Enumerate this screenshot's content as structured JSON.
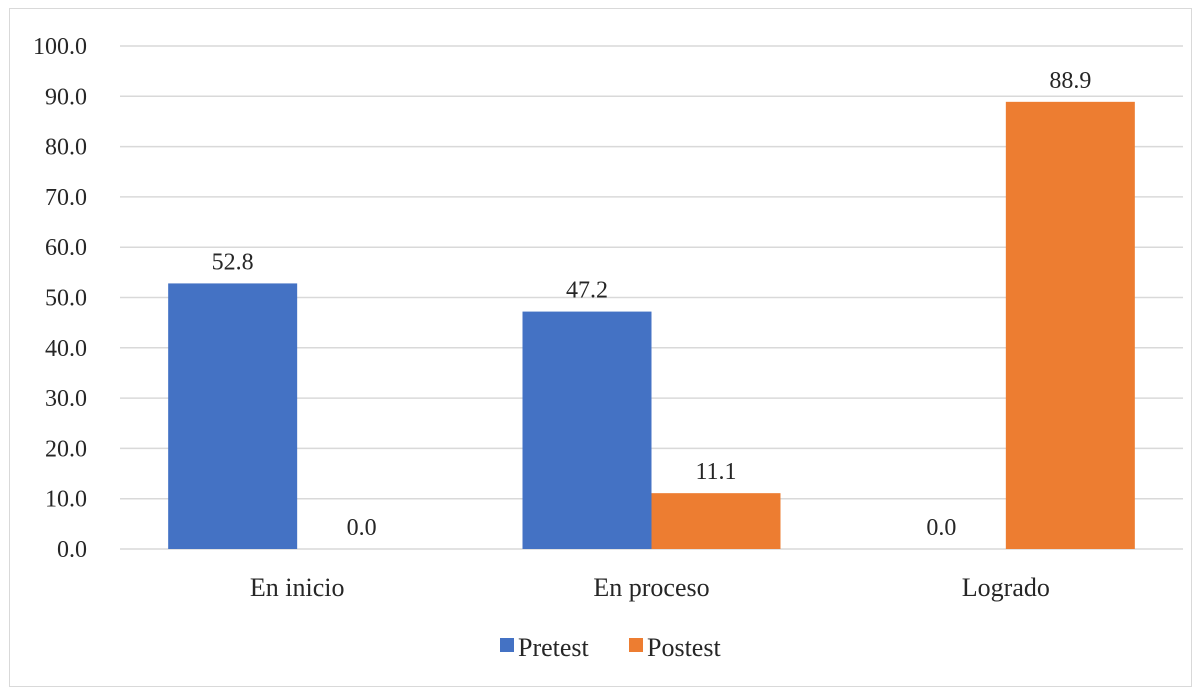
{
  "chart_data": {
    "type": "bar",
    "categories": [
      "En inicio",
      "En proceso",
      "Logrado"
    ],
    "series": [
      {
        "name": "Pretest",
        "values": [
          52.8,
          47.2,
          0.0
        ],
        "color": "#4472c4"
      },
      {
        "name": "Postest",
        "values": [
          0.0,
          11.1,
          88.9
        ],
        "color": "#ed7d31"
      }
    ],
    "ylim": [
      0,
      100
    ],
    "yticks": [
      "0.0",
      "10.0",
      "20.0",
      "30.0",
      "40.0",
      "50.0",
      "60.0",
      "70.0",
      "80.0",
      "90.0",
      "100.0"
    ],
    "data_labels": [
      [
        "52.8",
        "47.2",
        "0.0"
      ],
      [
        "0.0",
        "11.1",
        "88.9"
      ]
    ],
    "grid": true,
    "legend_position": "bottom",
    "gridline_color": "#d9d9d9"
  }
}
